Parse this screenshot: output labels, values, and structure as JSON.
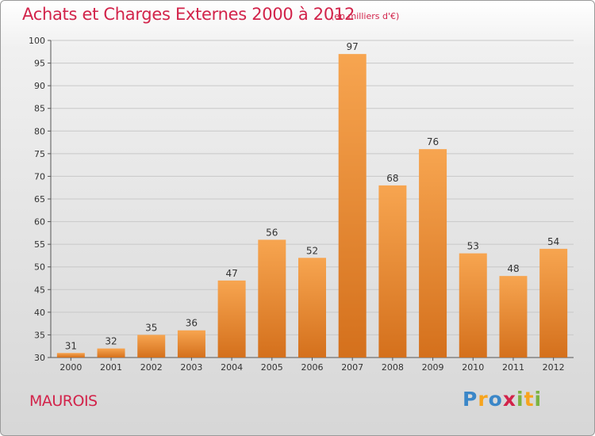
{
  "chart_data": {
    "type": "bar",
    "title": "Achats et Charges Externes 2000 à 2012",
    "subtitle": "(en milliers d'€)",
    "categories": [
      "2000",
      "2001",
      "2002",
      "2003",
      "2004",
      "2005",
      "2006",
      "2007",
      "2008",
      "2009",
      "2010",
      "2011",
      "2012"
    ],
    "values": [
      31,
      32,
      35,
      36,
      47,
      56,
      52,
      97,
      68,
      76,
      53,
      48,
      54
    ],
    "ylim": [
      30,
      100
    ],
    "yticks": [
      30,
      35,
      40,
      45,
      50,
      55,
      60,
      65,
      70,
      75,
      80,
      85,
      90,
      95,
      100
    ],
    "xlabel": "",
    "ylabel": "",
    "grid": true,
    "bar_color": "#f39a3c"
  },
  "commune": "MAUROIS",
  "logo": {
    "letters": [
      "P",
      "r",
      "o",
      "x",
      "i",
      "t",
      "i"
    ],
    "colors": [
      "#3b87c8",
      "#f7a41d",
      "#3b87c8",
      "#d2234a",
      "#7cb342",
      "#f7a41d",
      "#7cb342"
    ]
  }
}
